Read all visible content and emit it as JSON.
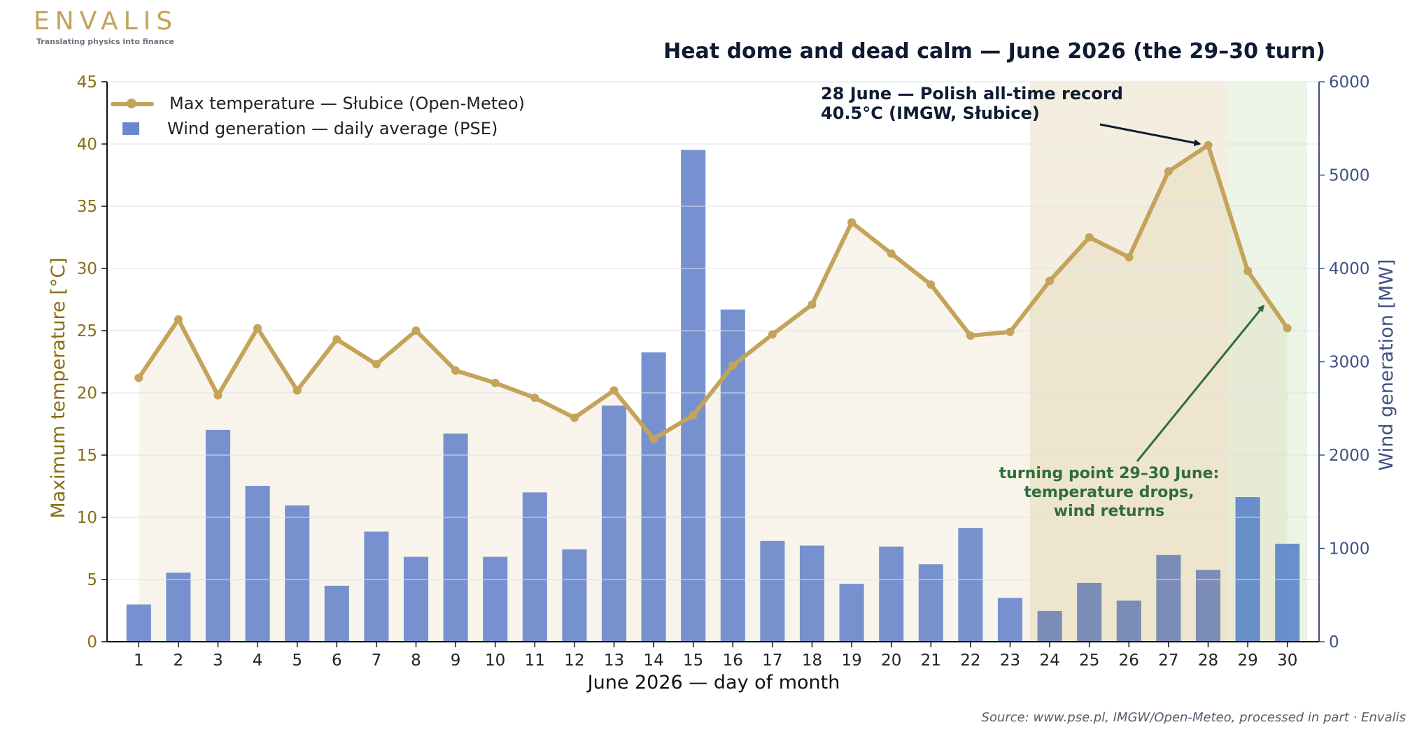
{
  "brand": {
    "name": "ENVALIS",
    "tagline": "Translating physics into finance"
  },
  "title": "Heat dome and dead calm — June 2026 (the 29–30 turn)",
  "source": "Source: www.pse.pl, IMGW/Open-Meteo, processed in part · Envalis",
  "colors": {
    "temperature": "#C4A35A",
    "wind": "#6b88cc",
    "left_axis_text": "#8a6d12",
    "right_axis_text": "#3f5185",
    "heat_band": "#f0e8d6",
    "turn_band": "#e6f0de",
    "record_arrow": "#0f1b33",
    "turn_arrow": "#2f6e39"
  },
  "legend": {
    "temperature": "Max temperature — Słubice (Open-Meteo)",
    "wind": "Wind generation — daily average (PSE)"
  },
  "annotations": {
    "record": [
      "28 June — Polish all-time record",
      "40.5°C (IMGW, Słubice)"
    ],
    "turn": [
      "turning point 29–30 June:",
      "temperature drops,",
      "wind returns"
    ]
  },
  "chart_data": {
    "type": "bar+line",
    "xlabel": "June 2026 — day of month",
    "ylabel_left": "Maximum temperature [°C]",
    "ylabel_right": "Wind generation [MW]",
    "ylim_left": [
      0,
      45
    ],
    "ylim_right": [
      0,
      6000
    ],
    "yticks_left": [
      0,
      5,
      10,
      15,
      20,
      25,
      30,
      35,
      40,
      45
    ],
    "yticks_right": [
      0,
      1000,
      2000,
      3000,
      4000,
      5000,
      6000
    ],
    "grid": true,
    "legend_position": "top-left",
    "categories": [
      "1",
      "2",
      "3",
      "4",
      "5",
      "6",
      "7",
      "8",
      "9",
      "10",
      "11",
      "12",
      "13",
      "14",
      "15",
      "16",
      "17",
      "18",
      "19",
      "20",
      "21",
      "22",
      "23",
      "24",
      "25",
      "26",
      "27",
      "28",
      "29",
      "30"
    ],
    "shaded_ranges": [
      {
        "name": "heat dome",
        "from": 23.5,
        "to": 28.5
      },
      {
        "name": "turn",
        "from": 28.5,
        "to": 30.5
      }
    ],
    "series": [
      {
        "name": "Max temperature — Słubice (Open-Meteo)",
        "type": "line",
        "axis": "left",
        "values": [
          21.2,
          25.9,
          19.8,
          25.2,
          20.2,
          24.3,
          22.3,
          25.0,
          21.8,
          20.8,
          19.6,
          18.0,
          20.2,
          16.3,
          18.2,
          22.2,
          24.7,
          27.1,
          33.7,
          31.2,
          28.7,
          24.6,
          24.9,
          29.0,
          32.5,
          30.9,
          37.8,
          39.9,
          29.8,
          25.2
        ]
      },
      {
        "name": "Wind generation — daily average (PSE)",
        "type": "bar",
        "axis": "right",
        "values": [
          400,
          740,
          2270,
          1670,
          1460,
          600,
          1180,
          910,
          2230,
          910,
          1600,
          990,
          2530,
          3100,
          5270,
          3560,
          1080,
          1030,
          620,
          1020,
          830,
          1220,
          470,
          330,
          630,
          440,
          930,
          770,
          1550,
          1050
        ]
      }
    ]
  }
}
